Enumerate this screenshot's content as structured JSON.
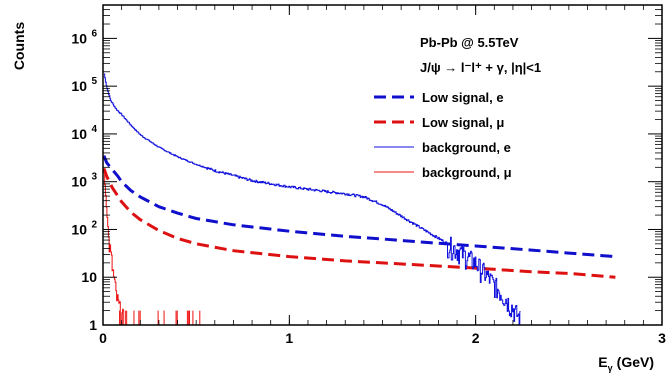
{
  "chart_data": {
    "type": "line",
    "title": "",
    "xlabel": "E",
    "xlabel_sub": "γ",
    "xlabel_unit": "(GeV)",
    "ylabel": "Counts",
    "xlim": [
      0,
      3
    ],
    "ylim": [
      1,
      5000000
    ],
    "yscale": "log",
    "x_ticks": [
      "0",
      "1",
      "2",
      "3"
    ],
    "y_ticks": [
      {
        "v": 1,
        "label": "1"
      },
      {
        "v": 10,
        "label": "10"
      },
      {
        "v": 100,
        "label": "10",
        "exp": "2"
      },
      {
        "v": 1000,
        "label": "10",
        "exp": "3"
      },
      {
        "v": 10000,
        "label": "10",
        "exp": "4"
      },
      {
        "v": 100000,
        "label": "10",
        "exp": "5"
      },
      {
        "v": 1000000,
        "label": "10",
        "exp": "6"
      }
    ],
    "grid": false,
    "legend_position": "top-right",
    "annotations": [
      "Pb-Pb @ 5.5TeV",
      "J/ψ  → l⁻l⁺ + γ, |η|<1"
    ],
    "series": [
      {
        "name": "Low signal, e",
        "color": "#1010cc",
        "style": "dashed",
        "width": 3,
        "x": [
          0.005,
          0.02,
          0.05,
          0.08,
          0.1,
          0.15,
          0.2,
          0.3,
          0.4,
          0.5,
          0.7,
          1.0,
          1.3,
          1.5,
          1.7,
          2.0,
          2.3,
          2.5,
          2.75
        ],
        "y": [
          3500,
          2500,
          1800,
          1300,
          1000,
          650,
          480,
          300,
          220,
          170,
          125,
          92,
          72,
          63,
          55,
          45,
          37,
          32,
          27
        ]
      },
      {
        "name": "Low signal, μ",
        "color": "#dd1111",
        "style": "dashed",
        "width": 3,
        "x": [
          0.005,
          0.02,
          0.05,
          0.08,
          0.1,
          0.15,
          0.2,
          0.3,
          0.4,
          0.5,
          0.7,
          1.0,
          1.3,
          1.5,
          1.7,
          2.0,
          2.3,
          2.5,
          2.75
        ],
        "y": [
          1900,
          1300,
          750,
          500,
          380,
          230,
          160,
          95,
          65,
          50,
          36,
          27,
          22,
          20,
          18,
          15.5,
          13,
          12,
          10
        ]
      },
      {
        "name": "background, e",
        "color": "#1111dd",
        "style": "solid",
        "width": 1,
        "x": [
          0.005,
          0.02,
          0.04,
          0.07,
          0.1,
          0.15,
          0.2,
          0.3,
          0.4,
          0.5,
          0.6,
          0.8,
          1.0,
          1.2,
          1.3,
          1.4,
          1.5,
          1.6,
          1.7,
          1.8,
          1.9,
          2.0,
          2.05,
          2.1,
          2.15,
          2.2,
          2.24
        ],
        "y": [
          180000,
          90000,
          50000,
          33000,
          25000,
          15000,
          9500,
          5200,
          3300,
          2300,
          1700,
          1050,
          780,
          620,
          560,
          480,
          330,
          190,
          110,
          65,
          38,
          20,
          12,
          7,
          4,
          2.2,
          1.3
        ]
      },
      {
        "name": "background, μ",
        "color": "#ee1111",
        "style": "solid",
        "width": 1,
        "x": [
          0.005,
          0.015,
          0.03,
          0.05,
          0.07,
          0.09,
          0.11
        ],
        "y": [
          1500,
          400,
          60,
          15,
          4,
          2,
          1.3
        ]
      }
    ]
  }
}
